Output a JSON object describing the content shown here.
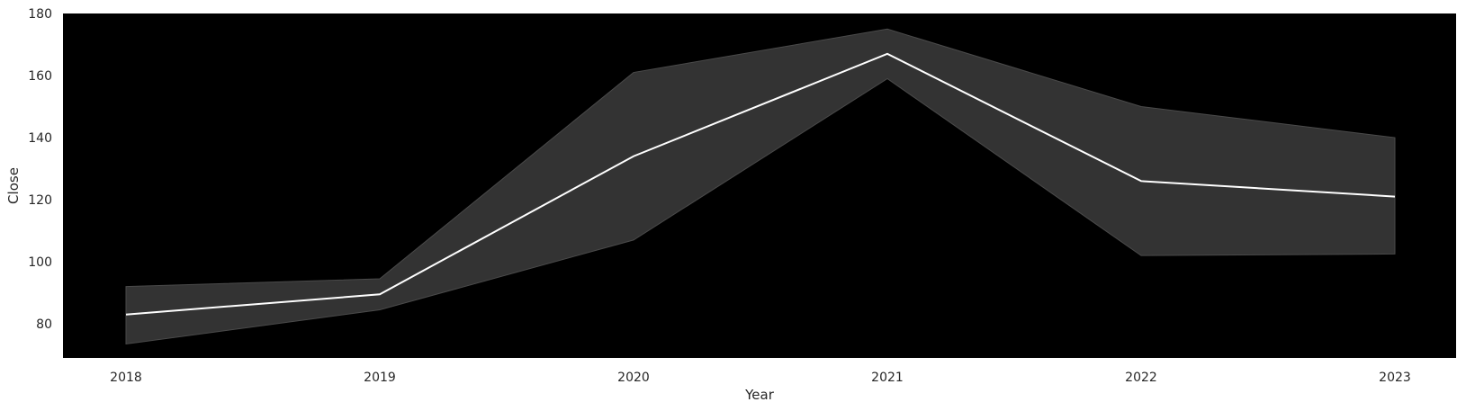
{
  "chart_data": {
    "type": "line",
    "title": "",
    "xlabel": "Year",
    "ylabel": "Close",
    "x": [
      "2018",
      "2019",
      "2020",
      "2021",
      "2022",
      "2023"
    ],
    "series": [
      {
        "mean": [
          83,
          89.5,
          134,
          167,
          126,
          121
        ],
        "ci_lower": [
          73.5,
          84.5,
          107,
          159,
          102,
          102.5
        ],
        "ci_upper": [
          92,
          94.5,
          161,
          175,
          150,
          140
        ]
      }
    ],
    "ylim": [
      69,
      180
    ],
    "yticks": [
      80,
      100,
      120,
      140,
      160,
      180
    ],
    "grid": false,
    "legend": "none",
    "colors": {
      "plot_background": "#000000",
      "line": "#ffffff",
      "band": "#333333",
      "band_edge": "#4a4a4a",
      "text": "#262626"
    }
  }
}
